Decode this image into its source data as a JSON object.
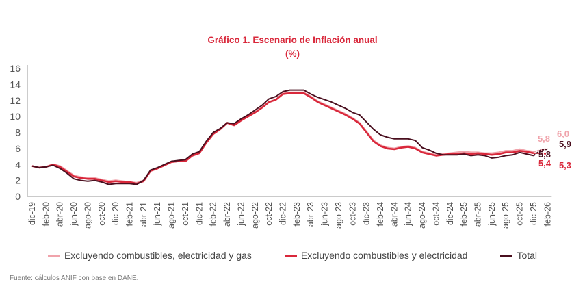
{
  "chart_data": {
    "type": "line",
    "title": "Gráfico 1. Escenario de Inflación anual",
    "subtitle": "(%)",
    "ylim": [
      0,
      16
    ],
    "yticks": [
      0,
      2,
      4,
      6,
      8,
      10,
      12,
      14,
      16
    ],
    "grid": false,
    "legend_position": "bottom",
    "xticks": [
      "dic-19",
      "feb-20",
      "abr-20",
      "jun-20",
      "ago-20",
      "oct-20",
      "dic-20",
      "feb-21",
      "abr-21",
      "jun-21",
      "ago-21",
      "oct-21",
      "dic-21",
      "feb-22",
      "abr-22",
      "jun-22",
      "ago-22",
      "oct-22",
      "dic-22",
      "feb-23",
      "abr-23",
      "jun-23",
      "ago-23",
      "oct-23",
      "dic-23",
      "feb-24",
      "abr-24",
      "jun-24",
      "ago-24",
      "oct-24",
      "dic-24",
      "feb-25",
      "abr-25",
      "jun-25",
      "ago-25",
      "oct-25",
      "dic-25",
      "feb-26"
    ],
    "x_start": "dic-19",
    "series": [
      {
        "name": "Excluyendo combustibles, electricidad y gas",
        "color": "#f0a3ab",
        "values": [
          3.8,
          3.6,
          3.7,
          4.0,
          3.8,
          3.2,
          2.6,
          2.4,
          2.3,
          2.3,
          2.1,
          1.9,
          2.0,
          1.9,
          1.8,
          1.7,
          2.0,
          3.2,
          3.5,
          3.9,
          4.3,
          4.4,
          4.5,
          5.1,
          5.4,
          6.8,
          7.8,
          8.4,
          9.2,
          8.9,
          9.5,
          10.0,
          10.5,
          11.1,
          11.8,
          12.1,
          12.9,
          13.0,
          13.0,
          13.0,
          12.5,
          11.9,
          11.5,
          11.1,
          10.7,
          10.3,
          9.8,
          9.2,
          8.1,
          7.0,
          6.4,
          6.1,
          6.0,
          6.2,
          6.3,
          6.1,
          5.6,
          5.4,
          5.2,
          5.3,
          5.4,
          5.5,
          5.6,
          5.5,
          5.5,
          5.4,
          5.4,
          5.5,
          5.7,
          5.7,
          5.9,
          5.7,
          5.6
        ],
        "projection": {
          "months": [
            "ene-26",
            "feb-26"
          ],
          "values": [
            5.8,
            6.0
          ]
        },
        "labels": [
          "5,8",
          "6,0"
        ]
      },
      {
        "name": "Excluyendo combustibles y electricidad",
        "color": "#d9283b",
        "values": [
          3.8,
          3.6,
          3.7,
          4.0,
          3.7,
          3.1,
          2.5,
          2.3,
          2.2,
          2.2,
          2.0,
          1.8,
          1.9,
          1.8,
          1.8,
          1.6,
          1.9,
          3.2,
          3.5,
          3.9,
          4.3,
          4.4,
          4.4,
          5.1,
          5.4,
          6.7,
          7.8,
          8.4,
          9.2,
          8.9,
          9.5,
          10.0,
          10.5,
          11.1,
          11.8,
          12.1,
          12.8,
          12.9,
          12.9,
          12.9,
          12.4,
          11.8,
          11.4,
          11.0,
          10.6,
          10.2,
          9.7,
          9.1,
          8.0,
          6.9,
          6.3,
          6.0,
          5.9,
          6.1,
          6.2,
          6.0,
          5.5,
          5.3,
          5.1,
          5.2,
          5.3,
          5.3,
          5.4,
          5.3,
          5.4,
          5.3,
          5.2,
          5.3,
          5.5,
          5.5,
          5.7,
          5.6,
          5.4
        ],
        "projection": {
          "months": [
            "ene-26",
            "feb-26"
          ],
          "values": [
            5.4,
            5.3
          ]
        },
        "labels": [
          "5,4",
          "5,3"
        ]
      },
      {
        "name": "Total",
        "color": "#4a0f1f",
        "values": [
          3.8,
          3.6,
          3.7,
          3.9,
          3.5,
          2.9,
          2.2,
          2.0,
          1.9,
          2.0,
          1.8,
          1.5,
          1.6,
          1.6,
          1.6,
          1.5,
          2.0,
          3.3,
          3.6,
          4.0,
          4.4,
          4.5,
          4.6,
          5.3,
          5.6,
          6.9,
          8.0,
          8.5,
          9.2,
          9.1,
          9.7,
          10.2,
          10.8,
          11.4,
          12.2,
          12.5,
          13.1,
          13.3,
          13.3,
          13.3,
          12.8,
          12.4,
          12.1,
          11.8,
          11.4,
          11.0,
          10.5,
          10.2,
          9.3,
          8.4,
          7.7,
          7.4,
          7.2,
          7.2,
          7.2,
          7.0,
          6.1,
          5.8,
          5.4,
          5.2,
          5.2,
          5.2,
          5.3,
          5.1,
          5.2,
          5.1,
          4.8,
          4.9,
          5.1,
          5.2,
          5.5,
          5.3,
          5.1
        ],
        "projection": {
          "months": [
            "ene-26",
            "feb-26"
          ],
          "values": [
            5.8,
            5.9
          ]
        },
        "labels": [
          "5,8",
          "5,9"
        ]
      }
    ]
  },
  "source": "Fuente: cálculos ANIF con base en DANE."
}
